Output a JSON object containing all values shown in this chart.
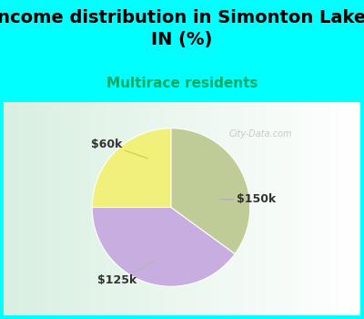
{
  "title": "Income distribution in Simonton Lake,\nIN (%)",
  "subtitle": "Multirace residents",
  "slices": [
    {
      "label": "$60k",
      "value": 25,
      "color": "#f0f07a"
    },
    {
      "label": "$150k",
      "value": 40,
      "color": "#c8aee0"
    },
    {
      "label": "$125k",
      "value": 35,
      "color": "#c0cc98"
    }
  ],
  "title_fontsize": 14,
  "subtitle_fontsize": 11,
  "subtitle_color": "#00aa66",
  "title_color": "#000000",
  "bg_color": "#00ffff",
  "chart_bg_color": "#e0f0e8",
  "watermark": "City-Data.com",
  "label_fontsize": 9,
  "startangle": 90
}
